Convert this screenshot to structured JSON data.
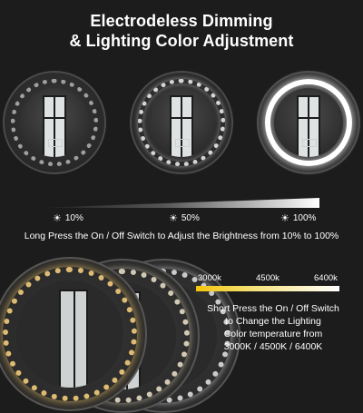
{
  "title": {
    "line1": "Electrodeless Dimming",
    "line2": "& Lighting Color Adjustment"
  },
  "brightness_levels": [
    "10%",
    "50%",
    "100%"
  ],
  "icons": {
    "brightness": "sun-icon"
  },
  "brightness_instruction": "Long Press the On / Off Switch to Adjust the Brightness from 10% to 100%",
  "color_temperature": {
    "labels": [
      "3000k",
      "4500k",
      "6400k"
    ],
    "colors": [
      "#f4c50a",
      "#f6e27a",
      "#ffffff"
    ],
    "instruction": {
      "line1": "Short Press the On / Off Switch",
      "line2": "to Change the Lighting",
      "line3": "Color temperature from",
      "line4": "3000K / 4500K / 6400K"
    }
  },
  "colors": {
    "background": "#1c1c1c",
    "text": "#ffffff"
  }
}
